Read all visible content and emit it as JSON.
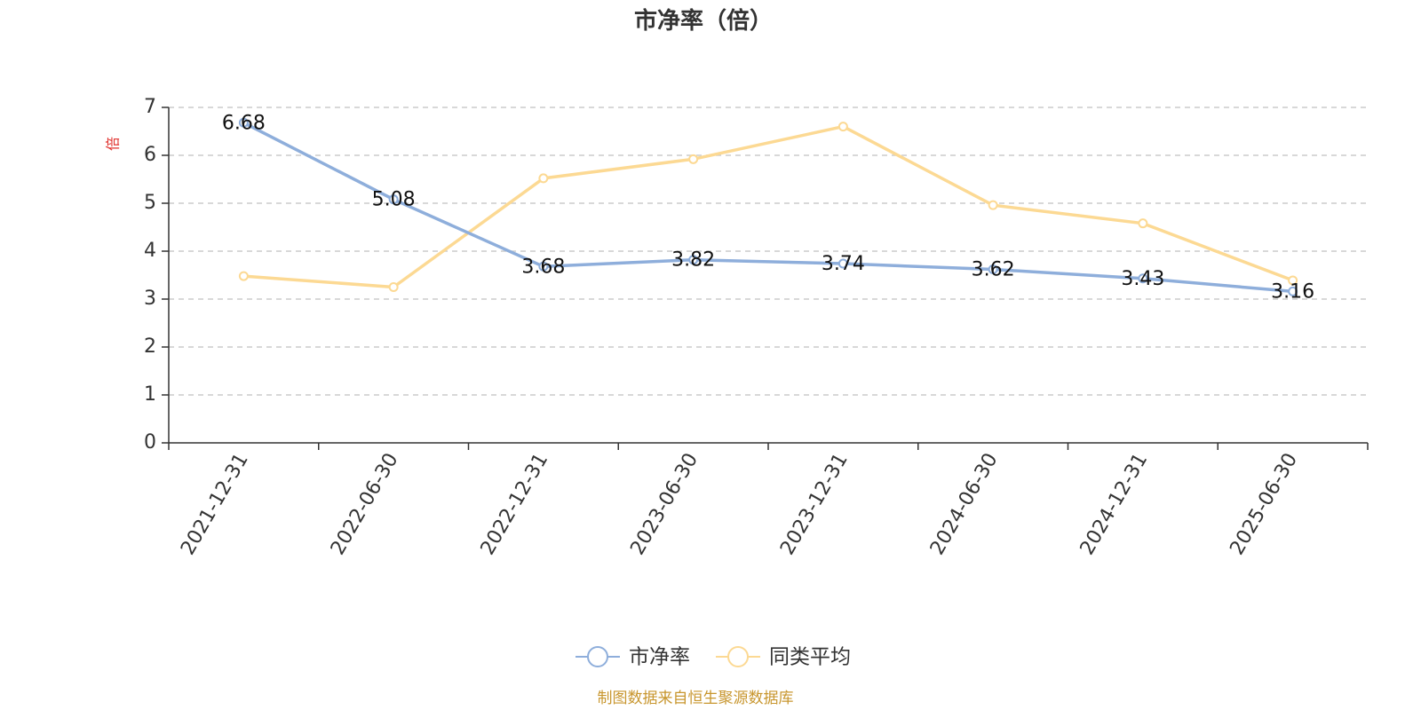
{
  "chart_data": {
    "type": "line",
    "title": "市净率（倍）",
    "ylabel": "倍",
    "xlabel": "",
    "categories": [
      "2021-12-31",
      "2022-06-30",
      "2022-12-31",
      "2023-06-30",
      "2023-12-31",
      "2024-06-30",
      "2024-12-31",
      "2025-06-30"
    ],
    "ylim": [
      0,
      7
    ],
    "yticks": [
      "0",
      "1",
      "2",
      "3",
      "4",
      "5",
      "6",
      "7"
    ],
    "grid": true,
    "legend_position": "bottom-center",
    "series": [
      {
        "name": "市净率",
        "color": "#8eaedb",
        "values": [
          6.68,
          5.08,
          3.68,
          3.82,
          3.74,
          3.62,
          3.43,
          3.16
        ],
        "labels": [
          "6.68",
          "5.08",
          "3.68",
          "3.82",
          "3.74",
          "3.62",
          "3.43",
          "3.16"
        ]
      },
      {
        "name": "同类平均",
        "color": "#fcd993",
        "values": [
          3.48,
          3.25,
          5.52,
          5.92,
          6.6,
          4.96,
          4.58,
          3.39
        ]
      }
    ],
    "source": "制图数据来自恒生聚源数据库",
    "source_color": "#c8962e",
    "unit_color": "#e0302c"
  }
}
